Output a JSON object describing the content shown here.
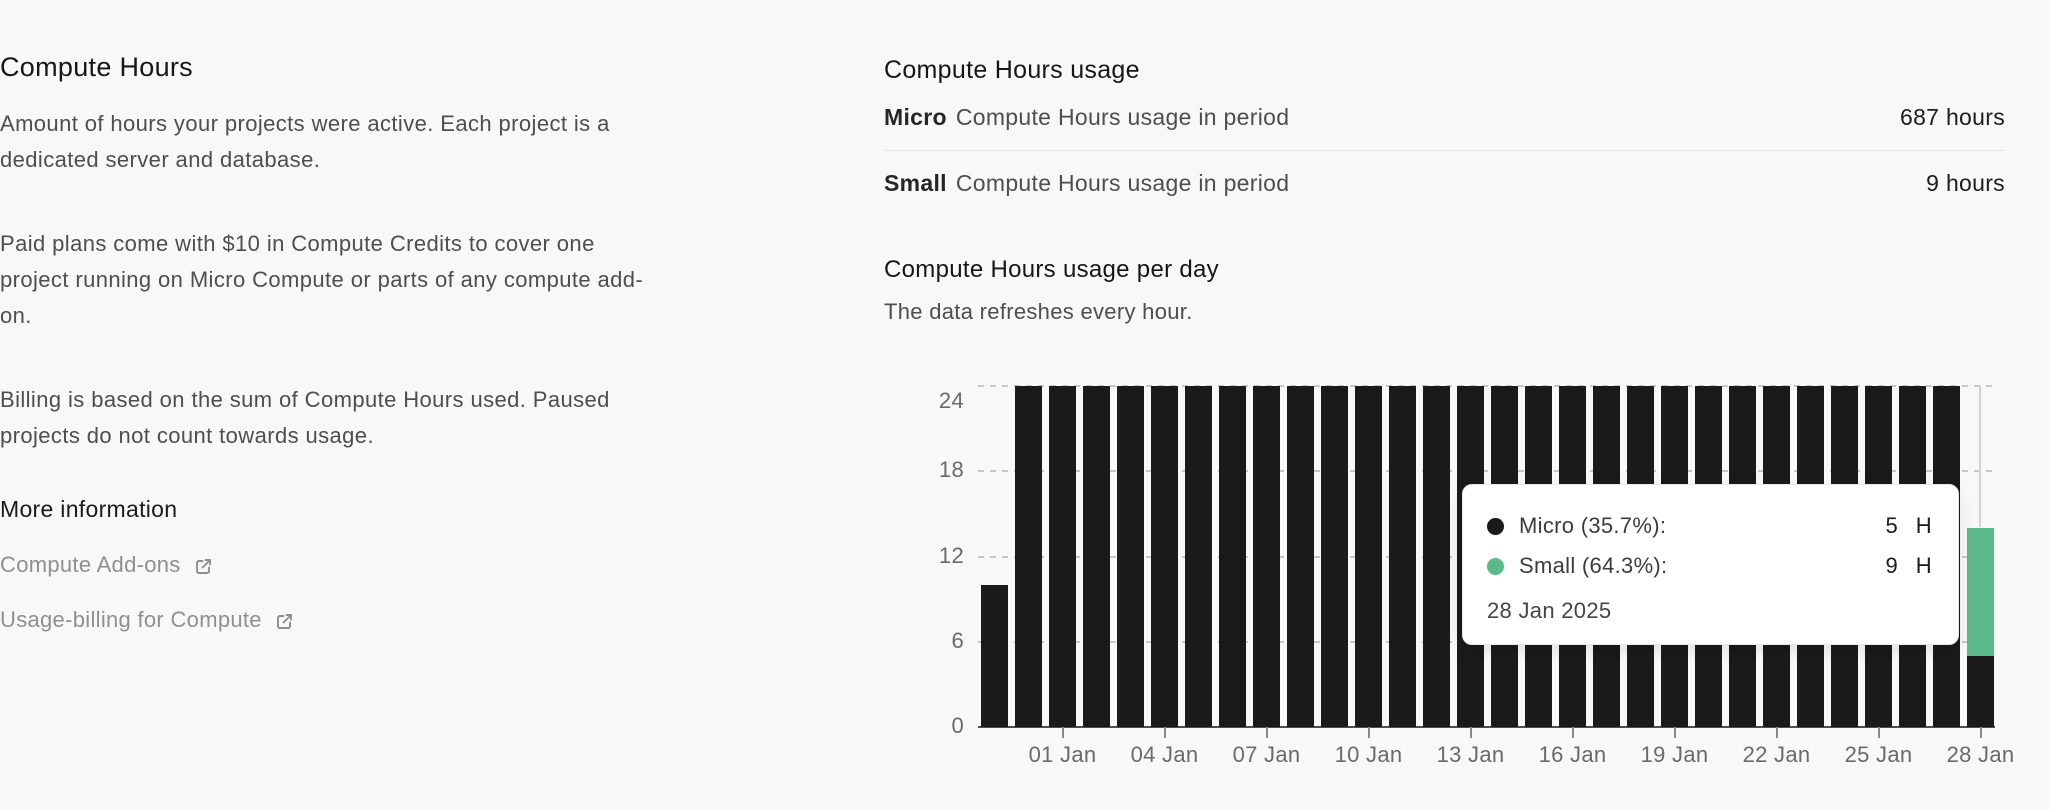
{
  "left_panel": {
    "title": "Compute Hours",
    "paragraphs": [
      "Amount of hours your projects were active. Each project is a dedicated server and database.",
      "Paid plans come with $10 in Compute Credits to cover one project running on Micro Compute or parts of any compute add-on.",
      "Billing is based on the sum of Compute Hours used. Paused projects do not count towards usage."
    ],
    "more_info": {
      "heading": "More information",
      "links": [
        {
          "label": "Compute Add-ons",
          "icon": "external-link-icon"
        },
        {
          "label": "Usage-billing for Compute",
          "icon": "external-link-icon"
        }
      ]
    }
  },
  "usage_summary": {
    "title": "Compute Hours usage",
    "rows": [
      {
        "tier": "Micro",
        "label": "Compute Hours usage in period",
        "value": "687 hours"
      },
      {
        "tier": "Small",
        "label": "Compute Hours usage in period",
        "value": "9 hours"
      }
    ]
  },
  "chart_section": {
    "title": "Compute Hours usage per day",
    "subtitle": "The data refreshes every hour."
  },
  "chart_data": {
    "type": "bar",
    "stacked": true,
    "title": "Compute Hours usage per day",
    "xlabel": "",
    "ylabel": "",
    "ylim": [
      0,
      24
    ],
    "y_ticks": [
      0,
      6,
      12,
      18,
      24
    ],
    "grid": "dashed-horizontal",
    "x": [
      "30 Dec",
      "31 Dec",
      "01 Jan",
      "02 Jan",
      "03 Jan",
      "04 Jan",
      "05 Jan",
      "06 Jan",
      "07 Jan",
      "08 Jan",
      "09 Jan",
      "10 Jan",
      "11 Jan",
      "12 Jan",
      "13 Jan",
      "14 Jan",
      "15 Jan",
      "16 Jan",
      "17 Jan",
      "18 Jan",
      "19 Jan",
      "20 Jan",
      "21 Jan",
      "22 Jan",
      "23 Jan",
      "24 Jan",
      "25 Jan",
      "26 Jan",
      "27 Jan",
      "28 Jan"
    ],
    "x_tick_labels": [
      "01 Jan",
      "04 Jan",
      "07 Jan",
      "10 Jan",
      "13 Jan",
      "16 Jan",
      "19 Jan",
      "22 Jan",
      "25 Jan",
      "28 Jan"
    ],
    "series": [
      {
        "name": "Micro",
        "color": "#1a1a1a",
        "values": [
          10,
          24,
          24,
          24,
          24,
          24,
          24,
          24,
          24,
          24,
          24,
          24,
          24,
          24,
          24,
          24,
          24,
          24,
          24,
          24,
          24,
          24,
          24,
          24,
          24,
          24,
          24,
          24,
          24,
          5
        ]
      },
      {
        "name": "Small",
        "color": "#5cb98a",
        "values": [
          0,
          0,
          0,
          0,
          0,
          0,
          0,
          0,
          0,
          0,
          0,
          0,
          0,
          0,
          0,
          0,
          0,
          0,
          0,
          0,
          0,
          0,
          0,
          0,
          0,
          0,
          0,
          0,
          0,
          9
        ]
      }
    ]
  },
  "tooltip": {
    "rows": [
      {
        "series": "Micro",
        "label": "Micro (35.7%):",
        "value": "5",
        "unit": "H",
        "color": "#1a1a1a"
      },
      {
        "series": "Small",
        "label": "Small (64.3%):",
        "value": "9",
        "unit": "H",
        "color": "#5cb98a"
      }
    ],
    "date": "28 Jan 2025"
  },
  "colors": {
    "background": "#f8f8f8",
    "bar_micro": "#1a1a1a",
    "bar_small": "#5cb98a",
    "gridline": "#c7c7c7",
    "axis_line": "#4f4f4f",
    "tick_text": "#6a6a6a",
    "divider": "#e5e5e5",
    "link_text": "#8f8f8f",
    "heading_text": "#161616",
    "body_text": "#4e4e4e"
  }
}
